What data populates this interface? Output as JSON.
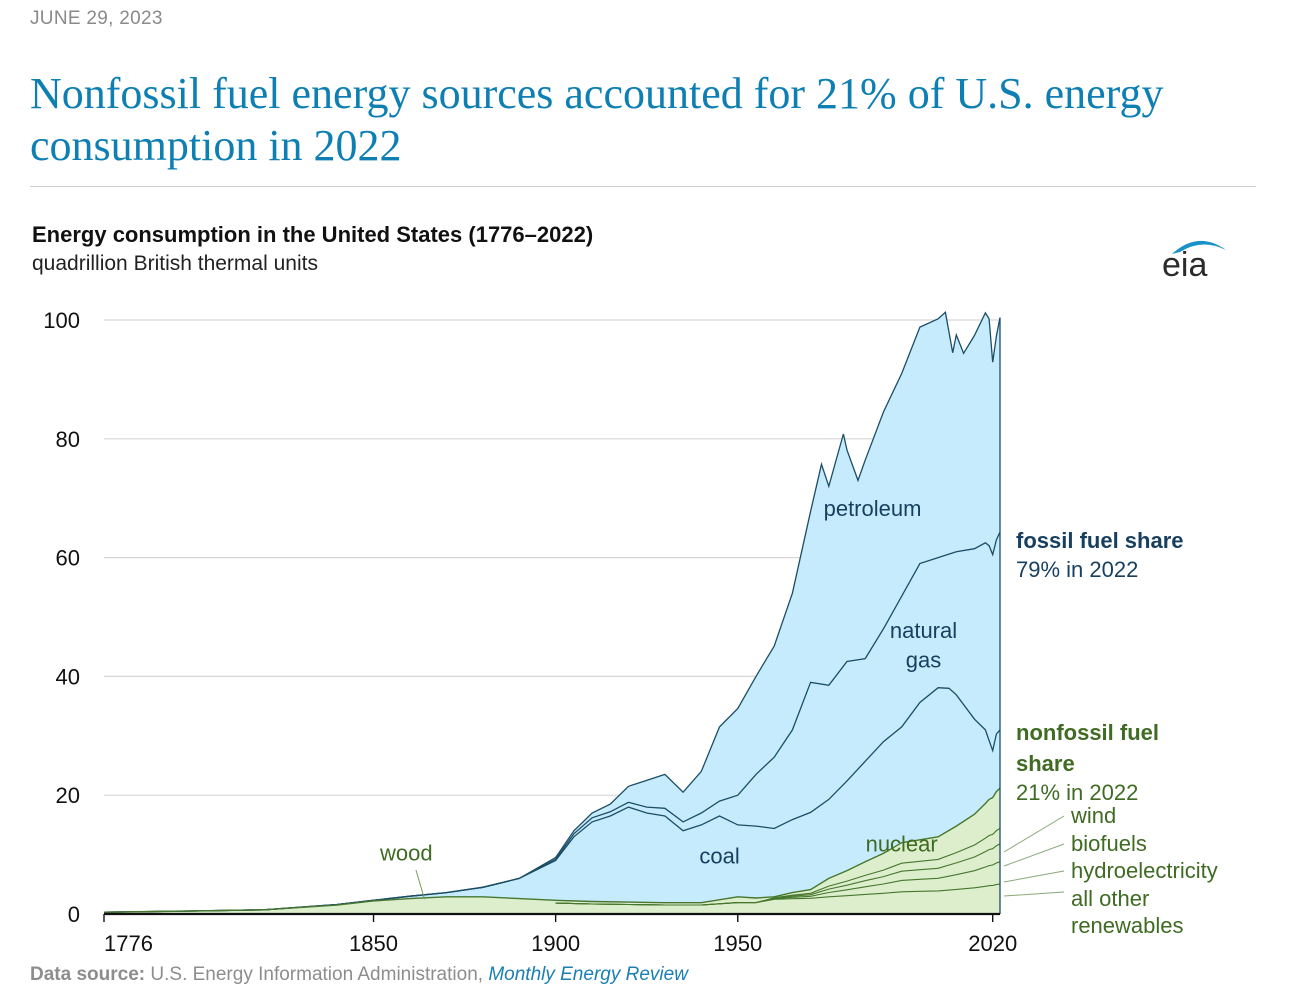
{
  "date": "JUNE 29, 2023",
  "headline": "Nonfossil fuel energy sources accounted for 21% of U.S. energy consumption in 2022",
  "source": {
    "label": "Data source:",
    "text": "U.S. Energy Information Administration,",
    "publication": "Monthly Energy Review"
  },
  "logo": {
    "text": "eia"
  },
  "chart_data": {
    "type": "area",
    "stacked": true,
    "title": "Energy consumption in the United States (1776–2022)",
    "subtitle": "quadrillion British thermal units",
    "xlim": [
      1776,
      2022
    ],
    "ylim": [
      0,
      100
    ],
    "x_ticks": [
      1776,
      1850,
      1900,
      1950,
      2020
    ],
    "y_ticks": [
      0,
      20,
      40,
      60,
      80,
      100
    ],
    "grid": "horizontal",
    "cumulative_totals": [
      {
        "name": "nonfossil",
        "x": [
          1776,
          1800,
          1820,
          1840,
          1850,
          1860,
          1870,
          1880,
          1890,
          1900,
          1910,
          1920,
          1930,
          1940,
          1950,
          1955,
          1960,
          1965,
          1970,
          1975,
          1980,
          1985,
          1990,
          1995,
          2000,
          2005,
          2010,
          2015,
          2018,
          2019,
          2020,
          2021,
          2022
        ],
        "y": [
          0.3,
          0.5,
          0.7,
          1.5,
          2.2,
          2.6,
          2.9,
          2.9,
          2.6,
          2.3,
          2.1,
          2.0,
          1.9,
          1.9,
          2.9,
          2.7,
          2.9,
          3.6,
          4.1,
          6.0,
          7.3,
          8.8,
          10.2,
          12.0,
          12.5,
          13.0,
          14.8,
          16.8,
          18.6,
          19.3,
          19.6,
          20.6,
          21.2
        ]
      },
      {
        "name": "coal_top",
        "x": [
          1776,
          1800,
          1820,
          1840,
          1850,
          1860,
          1870,
          1880,
          1890,
          1900,
          1905,
          1910,
          1915,
          1920,
          1925,
          1930,
          1935,
          1940,
          1945,
          1950,
          1955,
          1960,
          1965,
          1970,
          1975,
          1980,
          1985,
          1990,
          1995,
          2000,
          2005,
          2008,
          2010,
          2015,
          2018,
          2019,
          2020,
          2021,
          2022
        ],
        "y": [
          0.3,
          0.5,
          0.7,
          1.6,
          2.3,
          3.0,
          3.6,
          4.5,
          6.0,
          9.0,
          13.0,
          15.5,
          16.5,
          18.0,
          17.0,
          16.5,
          14.0,
          15.0,
          16.5,
          15.0,
          14.8,
          14.4,
          15.9,
          17.1,
          19.3,
          22.4,
          25.7,
          29.0,
          31.5,
          35.6,
          38.1,
          38.0,
          36.9,
          32.8,
          31.0,
          29.2,
          27.5,
          30.3,
          31.0
        ]
      },
      {
        "name": "natural_gas_top",
        "x": [
          1776,
          1800,
          1820,
          1840,
          1850,
          1860,
          1870,
          1880,
          1890,
          1900,
          1905,
          1910,
          1915,
          1920,
          1925,
          1930,
          1935,
          1940,
          1945,
          1950,
          1955,
          1960,
          1965,
          1970,
          1975,
          1980,
          1985,
          1990,
          1995,
          2000,
          2005,
          2010,
          2015,
          2018,
          2019,
          2020,
          2021,
          2022
        ],
        "y": [
          0.3,
          0.5,
          0.7,
          1.6,
          2.3,
          3.0,
          3.6,
          4.5,
          6.0,
          9.2,
          13.5,
          16.2,
          17.2,
          18.8,
          18.0,
          17.8,
          15.5,
          17.0,
          19.0,
          20.0,
          23.5,
          26.4,
          31.0,
          39.0,
          38.5,
          42.5,
          43.0,
          48.0,
          53.5,
          59.0,
          60.0,
          61.0,
          61.5,
          62.5,
          62.0,
          60.5,
          63.0,
          64.3
        ]
      },
      {
        "name": "total",
        "x": [
          1776,
          1800,
          1820,
          1840,
          1850,
          1860,
          1870,
          1880,
          1890,
          1900,
          1905,
          1910,
          1915,
          1920,
          1925,
          1930,
          1935,
          1940,
          1945,
          1950,
          1955,
          1960,
          1965,
          1970,
          1973,
          1975,
          1979,
          1980,
          1983,
          1985,
          1990,
          1995,
          2000,
          2005,
          2007,
          2009,
          2010,
          2012,
          2015,
          2018,
          2019,
          2020,
          2021,
          2022
        ],
        "y": [
          0.3,
          0.5,
          0.7,
          1.6,
          2.3,
          3.0,
          3.6,
          4.5,
          6.0,
          9.5,
          14.0,
          17.0,
          18.5,
          21.5,
          22.5,
          23.5,
          20.5,
          24.0,
          31.5,
          34.6,
          40.0,
          45.1,
          54.0,
          67.8,
          75.7,
          72.0,
          80.8,
          78.1,
          73.0,
          76.4,
          84.5,
          91.0,
          98.8,
          100.2,
          101.3,
          94.5,
          97.5,
          94.4,
          97.4,
          101.2,
          100.2,
          92.9,
          97.3,
          100.4
        ]
      }
    ],
    "series_labels": [
      {
        "key": "petroleum",
        "text": "petroleum",
        "x": 1987,
        "y": 67
      },
      {
        "key": "natural_gas_1",
        "text": "natural",
        "x": 2001,
        "y": 46.5
      },
      {
        "key": "natural_gas_2",
        "text": "gas",
        "x": 2001,
        "y": 41.5
      },
      {
        "key": "coal",
        "text": "coal",
        "x": 1945,
        "y": 8.5
      },
      {
        "key": "nuclear",
        "text": "nuclear",
        "x": 1995,
        "y": 10.5
      },
      {
        "key": "wood",
        "text": "wood",
        "x": 1859,
        "y": 9.0
      }
    ],
    "fossil_annotation": {
      "title": "fossil fuel share",
      "value": "79% in 2022"
    },
    "nonfossil_annotation": {
      "title_line1": "nonfossil fuel",
      "title_line2": "share",
      "value": "21% in 2022"
    },
    "renewable_labels": [
      "wind",
      "biofuels",
      "hydroelectricity",
      "all other",
      "renewables"
    ],
    "colors": {
      "fossil_fill": "#c6ebfc",
      "fossil_line": "#1b4e66",
      "nonfossil_fill": "#dceecc",
      "nonfossil_line": "#47772e",
      "grid": "#d6d6d6",
      "fossil_text": "#173f5f",
      "nonfossil_text": "#3f6b22"
    }
  }
}
